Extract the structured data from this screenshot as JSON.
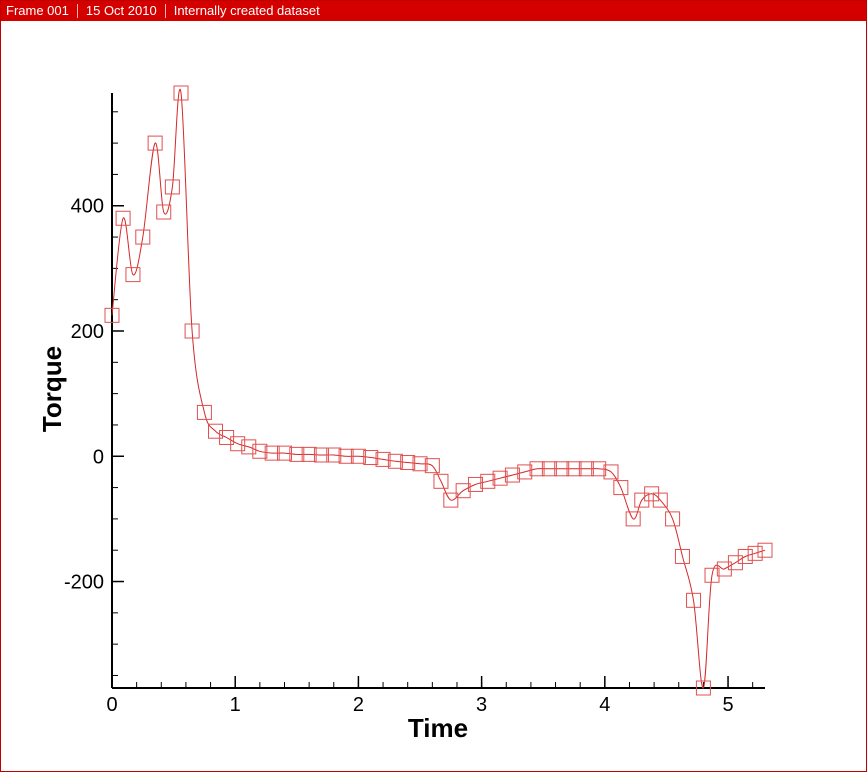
{
  "header": {
    "frame": "Frame 001",
    "date": "15 Oct 2010",
    "dataset": "Internally created dataset"
  },
  "colors": {
    "header_bg": "#d40000",
    "series": "#d62728",
    "marker": "#e05050",
    "axis": "#000000"
  },
  "chart_data": {
    "type": "line",
    "title": "",
    "xlabel": "Time",
    "ylabel": "Torque",
    "xlim": [
      0,
      5.3
    ],
    "ylim": [
      -370,
      580
    ],
    "xticks": [
      0,
      1,
      2,
      3,
      4,
      5
    ],
    "xtick_labels": [
      "0",
      "1",
      "2",
      "3",
      "4",
      "5"
    ],
    "xminor_step": 0.2,
    "yticks": [
      -200,
      0,
      200,
      400
    ],
    "ytick_labels": [
      "-200",
      "0",
      "200",
      "400"
    ],
    "yminor_step": 50,
    "grid": false,
    "legend": "none",
    "marker": "open-square",
    "series": [
      {
        "x": [
          0,
          0.09,
          0.17,
          0.25,
          0.35,
          0.42,
          0.49,
          0.56,
          0.65,
          0.75,
          0.84,
          0.93,
          1.02,
          1.11,
          1.2,
          1.3,
          1.4,
          1.5,
          1.6,
          1.7,
          1.8,
          1.9,
          2.0,
          2.1,
          2.2,
          2.3,
          2.4,
          2.5,
          2.6,
          2.67,
          2.75,
          2.85,
          2.95,
          3.05,
          3.15,
          3.25,
          3.35,
          3.45,
          3.55,
          3.65,
          3.75,
          3.85,
          3.95,
          4.05,
          4.13,
          4.23,
          4.3,
          4.38,
          4.45,
          4.55,
          4.63,
          4.72,
          4.8,
          4.87,
          4.97,
          5.06,
          5.14,
          5.22,
          5.3
        ],
        "y": [
          225,
          380,
          290,
          350,
          500,
          390,
          430,
          580,
          200,
          70,
          40,
          30,
          20,
          15,
          8,
          5,
          5,
          3,
          3,
          2,
          2,
          0,
          0,
          -2,
          -5,
          -8,
          -10,
          -12,
          -15,
          -40,
          -70,
          -55,
          -45,
          -40,
          -35,
          -30,
          -25,
          -20,
          -20,
          -20,
          -20,
          -20,
          -20,
          -25,
          -50,
          -100,
          -70,
          -60,
          -70,
          -100,
          -160,
          -230,
          -370,
          -190,
          -180,
          -170,
          -160,
          -155,
          -150
        ]
      }
    ]
  }
}
